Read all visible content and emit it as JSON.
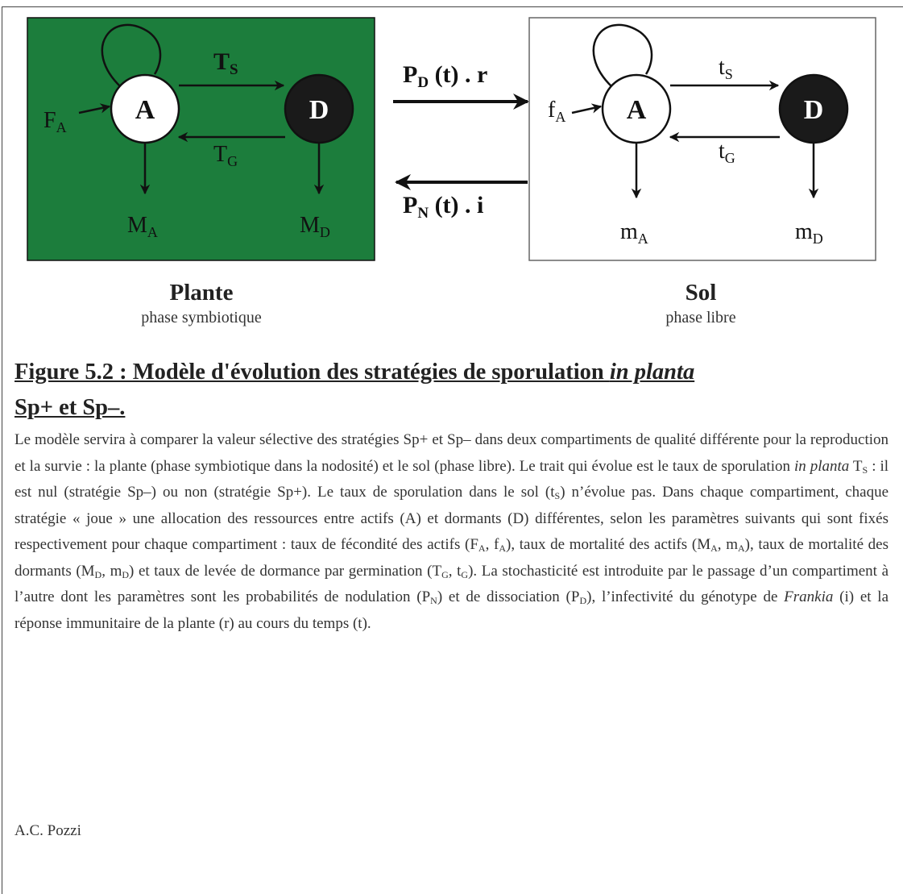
{
  "diagram": {
    "plant": {
      "node_a": "A",
      "node_d": "D",
      "fecundity": {
        "main": "F",
        "sub": "A"
      },
      "sporulation": {
        "main": "T",
        "sub": "S"
      },
      "germination": {
        "main": "T",
        "sub": "G"
      },
      "mortality_a": {
        "main": "M",
        "sub": "A"
      },
      "mortality_d": {
        "main": "M",
        "sub": "D"
      },
      "title": "Plante",
      "subtitle": "phase symbiotique"
    },
    "soil": {
      "node_a": "A",
      "node_d": "D",
      "fecundity": {
        "main": "f",
        "sub": "A"
      },
      "sporulation": {
        "main": "t",
        "sub": "S"
      },
      "germination": {
        "main": "t",
        "sub": "G"
      },
      "mortality_a": {
        "main": "m",
        "sub": "A"
      },
      "mortality_d": {
        "main": "m",
        "sub": "D"
      },
      "title": "Sol",
      "subtitle": "phase libre"
    },
    "to_soil": {
      "main": "P",
      "sub": "D",
      "rest": " (t) . r"
    },
    "to_plant": {
      "main": "P",
      "sub": "N",
      "rest": " (t) . i"
    }
  },
  "caption": {
    "heading": {
      "before": "Figure 5.2 : Modèle d'évolution des stratégies de sporulation ",
      "italic": "in planta",
      "after": "Sp+ et Sp–."
    },
    "paragraph": [
      "Le modèle servira à comparer la valeur sélective des stratégies Sp+ et Sp– dans deux compartiments de qualité différente pour la reproduction et la survie : la plante (phase symbiotique dans la nodosité) et le sol (phase libre). Le trait qui évolue est le taux de sporulation ",
      {
        "italic": "in planta"
      },
      " T",
      {
        "sub": "S"
      },
      " : il est nul (stratégie Sp–) ou non (stratégie Sp+). Le taux de sporulation dans le sol (t",
      {
        "sub": "S"
      },
      ") n’évolue pas. Dans chaque compartiment, chaque stratégie « joue » une allocation des ressources entre actifs (A) et dormants (D) différentes, selon les paramètres suivants qui sont fixés respectivement pour chaque compartiment : taux de fécondité des actifs (F",
      {
        "sub": "A"
      },
      ", f",
      {
        "sub": "A"
      },
      "), taux de mortalité des actifs (M",
      {
        "sub": "A"
      },
      ", m",
      {
        "sub": "A"
      },
      "), taux de mortalité des dormants (M",
      {
        "sub": "D"
      },
      ", m",
      {
        "sub": "D"
      },
      ") et taux de levée de dormance par germination (T",
      {
        "sub": "G"
      },
      ", t",
      {
        "sub": "G"
      },
      "). La stochasticité est introduite par le passage d’un compartiment à l’autre dont les paramètres sont les probabilités de nodulation (P",
      {
        "sub": "N"
      },
      ") et de dissociation (P",
      {
        "sub": "D"
      },
      "), l’infectivité du génotype de ",
      {
        "italic": "Frankia"
      },
      " (i) et la réponse immunitaire de la plante (r) au cours du temps (t)."
    ],
    "author": "A.C. Pozzi"
  }
}
